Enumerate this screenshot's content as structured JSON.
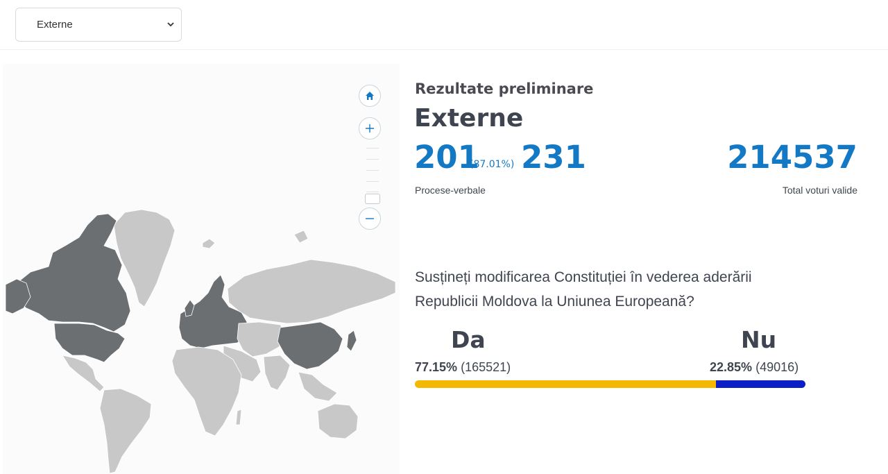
{
  "filter": {
    "selected": "Externe"
  },
  "map": {
    "controls": [
      "home-icon",
      "zoom-in-icon",
      "zoom-out-icon"
    ]
  },
  "results": {
    "subtitle": "Rezultate preliminare",
    "region": "Externe",
    "processed": "201",
    "processed_pct": "(87.01%)",
    "total_reports": "231",
    "reports_label": "Procese-verbale",
    "valid_votes": "214537",
    "valid_votes_label": "Total voturi valide"
  },
  "referendum": {
    "question": "Susțineți modificarea Constituției în vederea aderării Republicii Moldova la Uniunea Europeană?",
    "options": [
      {
        "name": "Da",
        "percent": "77.15%",
        "votes": "(165521)",
        "share": 77.15,
        "color": "#f4b800"
      },
      {
        "name": "Nu",
        "percent": "22.85%",
        "votes": "(49016)",
        "share": 22.85,
        "color": "#0b1fc4"
      }
    ]
  },
  "colors": {
    "accent": "#1479c5",
    "map_highlight": "#6b6f72",
    "map_default": "#c8c8c8"
  }
}
